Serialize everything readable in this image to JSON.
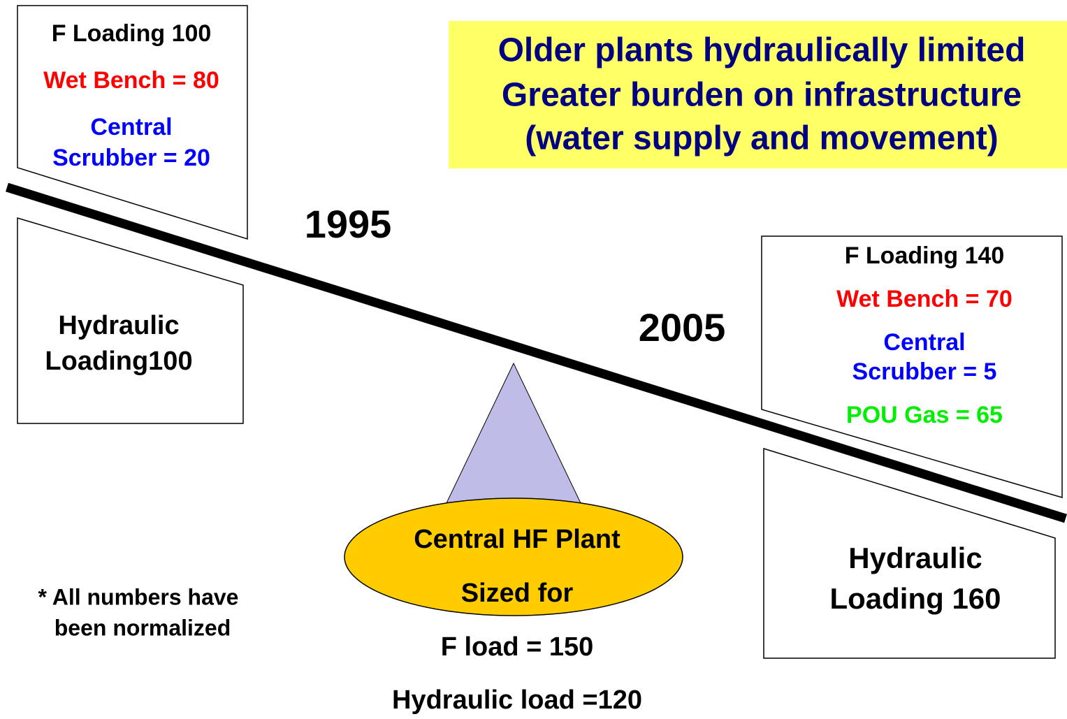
{
  "banner": {
    "lines": [
      "Older plants hydraulically limited",
      "Greater burden on infrastructure",
      "(water supply and movement)"
    ]
  },
  "left": {
    "year": "1995",
    "f_loading": "F Loading 100",
    "wet_bench": "Wet Bench = 80",
    "scrubber": [
      "Central",
      "Scrubber = 20"
    ],
    "hydraulic": [
      "Hydraulic",
      "Loading100"
    ]
  },
  "right": {
    "year": "2005",
    "f_loading": "F Loading 140",
    "wet_bench": "Wet Bench  = 70",
    "scrubber": [
      "Central",
      "Scrubber = 5"
    ],
    "pou": "POU Gas = 65",
    "hydraulic": [
      "Hydraulic",
      "Loading 160"
    ]
  },
  "plant": {
    "lines": [
      "Central  HF Plant",
      "Sized for"
    ],
    "f_load": "F load = 150",
    "hydraulic_load": "Hydraulic load =120"
  },
  "note": [
    "* All numbers have",
    "been normalized"
  ]
}
